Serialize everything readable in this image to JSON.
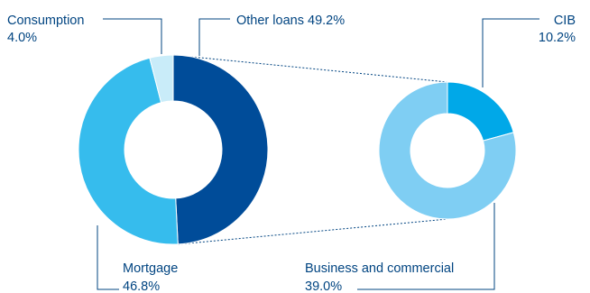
{
  "chart_data": [
    {
      "type": "pie",
      "donut": true,
      "categories": [
        "Other loans",
        "Mortgage",
        "Consumption"
      ],
      "values": [
        49.2,
        46.8,
        4.0
      ],
      "labels": [
        {
          "name": "Other loans",
          "value_label": "49.2%"
        },
        {
          "name": "Mortgage",
          "value_label": "46.8%"
        },
        {
          "name": "Consumption",
          "value_label": "4.0%"
        }
      ],
      "colors": [
        "#004c99",
        "#36bced",
        "#c9ecf9"
      ]
    },
    {
      "type": "pie",
      "donut": true,
      "breakdown_of": "Other loans",
      "categories": [
        "CIB",
        "Business and commercial"
      ],
      "values": [
        10.2,
        39.0
      ],
      "labels": [
        {
          "name": "CIB",
          "value_label": "10.2%"
        },
        {
          "name": "Business and commercial",
          "value_label": "39.0%"
        }
      ],
      "colors": [
        "#00a8e8",
        "#7fcef3"
      ]
    }
  ]
}
